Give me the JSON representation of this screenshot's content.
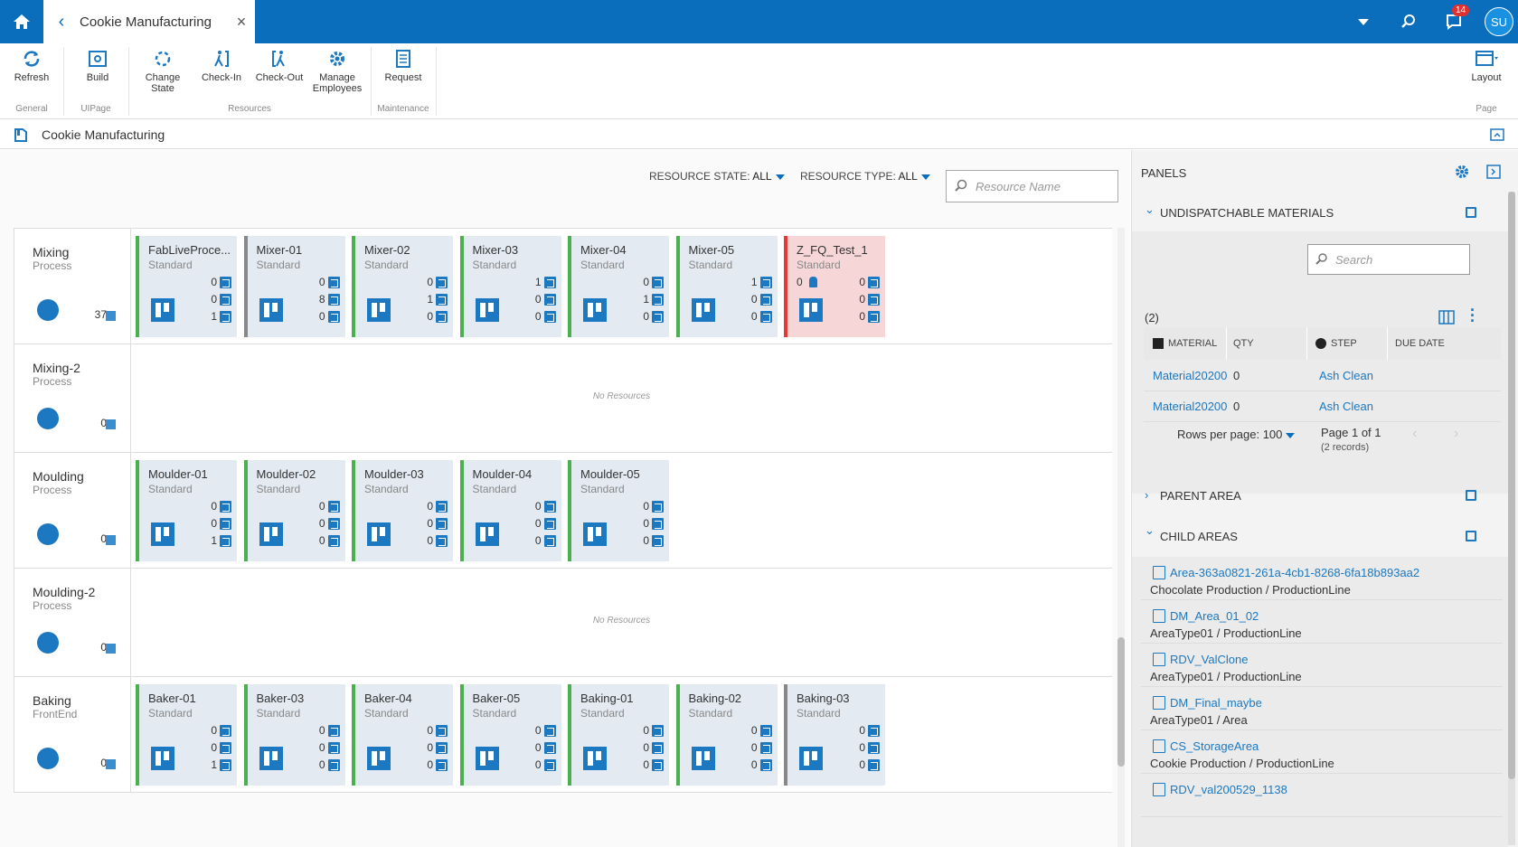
{
  "topbar": {
    "tab_title": "Cookie Manufacturing",
    "notification_count": "14",
    "user_initials": "SU"
  },
  "ribbon": {
    "buttons": [
      {
        "label": "Refresh"
      },
      {
        "label": "Build"
      },
      {
        "label": "Change State"
      },
      {
        "label": "Check-In"
      },
      {
        "label": "Check-Out"
      },
      {
        "label": "Manage Employees"
      },
      {
        "label": "Request"
      },
      {
        "label": "Layout"
      }
    ],
    "groups": [
      "General",
      "UIPage",
      "Resources",
      "Maintenance",
      "Page"
    ]
  },
  "breadcrumb": {
    "title": "Cookie Manufacturing"
  },
  "filters": {
    "state_label": "RESOURCE STATE:",
    "state_value": "ALL",
    "type_label": "RESOURCE TYPE:",
    "type_value": "ALL",
    "search_placeholder": "Resource Name"
  },
  "areas": [
    {
      "name": "Mixing",
      "type": "Process",
      "count": "37",
      "resources": [
        {
          "name": "FabLiveProce...",
          "type": "Standard",
          "in": "0",
          "proc": "0",
          "out": "1",
          "status": "green"
        },
        {
          "name": "Mixer-01",
          "type": "Standard",
          "in": "0",
          "proc": "8",
          "out": "0",
          "status": "gray"
        },
        {
          "name": "Mixer-02",
          "type": "Standard",
          "in": "0",
          "proc": "1",
          "out": "0",
          "status": "green"
        },
        {
          "name": "Mixer-03",
          "type": "Standard",
          "in": "1",
          "proc": "0",
          "out": "0",
          "status": "green"
        },
        {
          "name": "Mixer-04",
          "type": "Standard",
          "in": "0",
          "proc": "1",
          "out": "0",
          "status": "green"
        },
        {
          "name": "Mixer-05",
          "type": "Standard",
          "in": "1",
          "proc": "0",
          "out": "0",
          "status": "green"
        },
        {
          "name": "Z_FQ_Test_1",
          "type": "Standard",
          "in": "0",
          "proc": "0",
          "out": "0",
          "status": "red",
          "employees": "0"
        }
      ]
    },
    {
      "name": "Mixing-2",
      "type": "Process",
      "count": "0",
      "empty_text": "No Resources",
      "resources": []
    },
    {
      "name": "Moulding",
      "type": "Process",
      "count": "0",
      "resources": [
        {
          "name": "Moulder-01",
          "type": "Standard",
          "in": "0",
          "proc": "0",
          "out": "1",
          "status": "green"
        },
        {
          "name": "Moulder-02",
          "type": "Standard",
          "in": "0",
          "proc": "0",
          "out": "0",
          "status": "green"
        },
        {
          "name": "Moulder-03",
          "type": "Standard",
          "in": "0",
          "proc": "0",
          "out": "0",
          "status": "green"
        },
        {
          "name": "Moulder-04",
          "type": "Standard",
          "in": "0",
          "proc": "0",
          "out": "0",
          "status": "green"
        },
        {
          "name": "Moulder-05",
          "type": "Standard",
          "in": "0",
          "proc": "0",
          "out": "0",
          "status": "green"
        }
      ]
    },
    {
      "name": "Moulding-2",
      "type": "Process",
      "count": "0",
      "empty_text": "No Resources",
      "resources": []
    },
    {
      "name": "Baking",
      "type": "FrontEnd",
      "count": "0",
      "resources": [
        {
          "name": "Baker-01",
          "type": "Standard",
          "in": "0",
          "proc": "0",
          "out": "1",
          "status": "green"
        },
        {
          "name": "Baker-03",
          "type": "Standard",
          "in": "0",
          "proc": "0",
          "out": "0",
          "status": "green"
        },
        {
          "name": "Baker-04",
          "type": "Standard",
          "in": "0",
          "proc": "0",
          "out": "0",
          "status": "green"
        },
        {
          "name": "Baker-05",
          "type": "Standard",
          "in": "0",
          "proc": "0",
          "out": "0",
          "status": "green"
        },
        {
          "name": "Baking-01",
          "type": "Standard",
          "in": "0",
          "proc": "0",
          "out": "0",
          "status": "green"
        },
        {
          "name": "Baking-02",
          "type": "Standard",
          "in": "0",
          "proc": "0",
          "out": "0",
          "status": "green"
        },
        {
          "name": "Baking-03",
          "type": "Standard",
          "in": "0",
          "proc": "0",
          "out": "0",
          "status": "gray"
        }
      ]
    }
  ],
  "panels": {
    "title": "PANELS",
    "undispatchable": {
      "title": "UNDISPATCHABLE MATERIALS",
      "search_placeholder": "Search",
      "count": "(2)",
      "columns": [
        "MATERIAL",
        "QTY",
        "STEP",
        "DUE DATE"
      ],
      "rows": [
        {
          "material": "Material20200",
          "qty": "0",
          "step": "Ash Clean",
          "due": ""
        },
        {
          "material": "Material20200",
          "qty": "0",
          "step": "Ash Clean",
          "due": ""
        }
      ],
      "rows_per_page_label": "Rows per page:",
      "rows_per_page": "100",
      "page_info": "Page 1 of 1",
      "records": "(2 records)"
    },
    "parent_area": {
      "title": "PARENT AREA"
    },
    "child_areas": {
      "title": "CHILD AREAS",
      "items": [
        {
          "name": "Area-363a0821-261a-4cb1-8268-6fa18b893aa2",
          "type": "Chocolate Production / ProductionLine"
        },
        {
          "name": "DM_Area_01_02",
          "type": "AreaType01 / ProductionLine"
        },
        {
          "name": "RDV_ValClone",
          "type": "AreaType01 / ProductionLine"
        },
        {
          "name": "DM_Final_maybe",
          "type": "AreaType01 / Area"
        },
        {
          "name": "CS_StorageArea",
          "type": "Cookie Production / ProductionLine"
        },
        {
          "name": "RDV_val200529_1138",
          "type": ""
        }
      ]
    }
  }
}
